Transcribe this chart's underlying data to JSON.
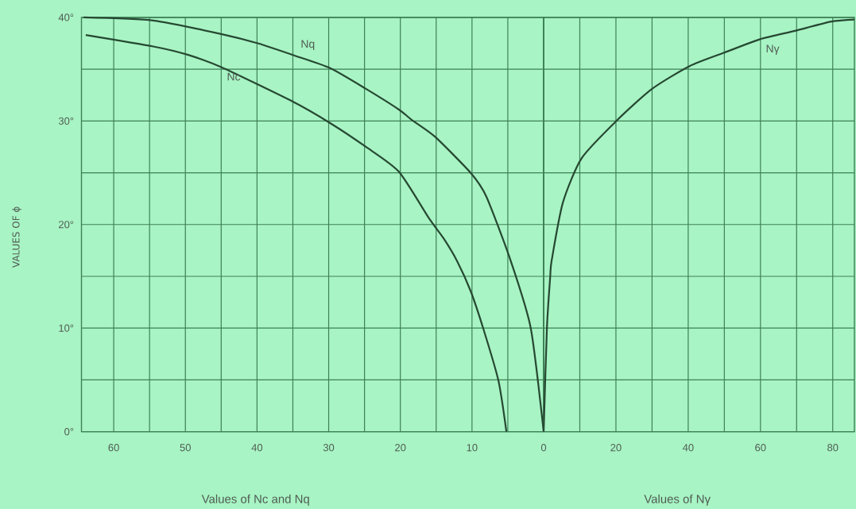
{
  "chart_data": [
    {
      "type": "line",
      "xlabel": "Values of Nc and Nq",
      "ylabel": "VALUES OF ϕ",
      "xlim": [
        64.5,
        0
      ],
      "xticks": [
        60,
        {
          "value": 55,
          "label": null
        },
        50,
        {
          "value": 45,
          "label": null
        },
        40,
        {
          "value": 35,
          "label": null
        },
        30,
        {
          "value": 25,
          "label": null
        },
        20,
        {
          "value": 15,
          "label": null
        },
        10,
        {
          "value": 5,
          "label": null
        },
        0
      ],
      "ylim": [
        0,
        40
      ],
      "yticks": [
        {
          "value": 0,
          "label": "0°"
        },
        {
          "value": 5,
          "label": null
        },
        {
          "value": 10,
          "label": "10°"
        },
        {
          "value": 15,
          "label": null
        },
        {
          "value": 20,
          "label": "20°"
        },
        {
          "value": 25,
          "label": null
        },
        {
          "value": 30,
          "label": "30°"
        },
        {
          "value": 35,
          "label": null
        },
        {
          "value": 40,
          "label": "40°"
        }
      ],
      "grid": true,
      "series": [
        {
          "name": "Nq",
          "color": "#264832",
          "x": [
            64.2,
            54.5,
            45,
            39.9,
            34.7,
            29.8,
            24.8,
            20.2,
            18.4,
            15.2,
            10.2,
            8,
            4.6,
            1.8,
            0
          ],
          "values": [
            40,
            39.7,
            38.4,
            37.5,
            36.3,
            35.1,
            33.1,
            31.1,
            30.1,
            28.5,
            25,
            22.7,
            16.5,
            10,
            0
          ]
        },
        {
          "name": "Nc",
          "color": "#264832",
          "x": [
            63.9,
            54.5,
            49.7,
            45,
            35.1,
            29.8,
            24.8,
            20.2,
            16,
            14,
            12.1,
            10.2,
            8.4,
            6.3,
            5.2
          ],
          "values": [
            38.3,
            37.2,
            36.4,
            35.2,
            31.9,
            29.8,
            27.5,
            25.1,
            20.6,
            18.7,
            16.5,
            13.6,
            9.9,
            4.9,
            0
          ]
        }
      ]
    },
    {
      "type": "line",
      "xlabel": "Values of Nγ",
      "xlim": [
        0,
        86
      ],
      "xticks": [
        {
          "value": 0,
          "label": null
        },
        {
          "value": 10,
          "label": null
        },
        20,
        {
          "value": 30,
          "label": null
        },
        40,
        {
          "value": 50,
          "label": null
        },
        60,
        {
          "value": 70,
          "label": null
        },
        80
      ],
      "ylim": [
        0,
        40
      ],
      "yticks": [
        0,
        5,
        10,
        15,
        20,
        25,
        30,
        35,
        40
      ],
      "grid": true,
      "tick_labels": "x",
      "series": [
        {
          "name": "Nγ",
          "color": "#264832",
          "x": [
            0,
            0.9,
            1.8,
            2.2,
            5.3,
            10.5,
            20.4,
            30,
            40.4,
            50,
            59.9,
            69.5,
            79.6,
            86
          ],
          "values": [
            0,
            10,
            14.9,
            16.5,
            22.1,
            26.4,
            30.1,
            33.1,
            35.3,
            36.6,
            37.9,
            38.7,
            39.6,
            39.8
          ]
        }
      ]
    }
  ]
}
